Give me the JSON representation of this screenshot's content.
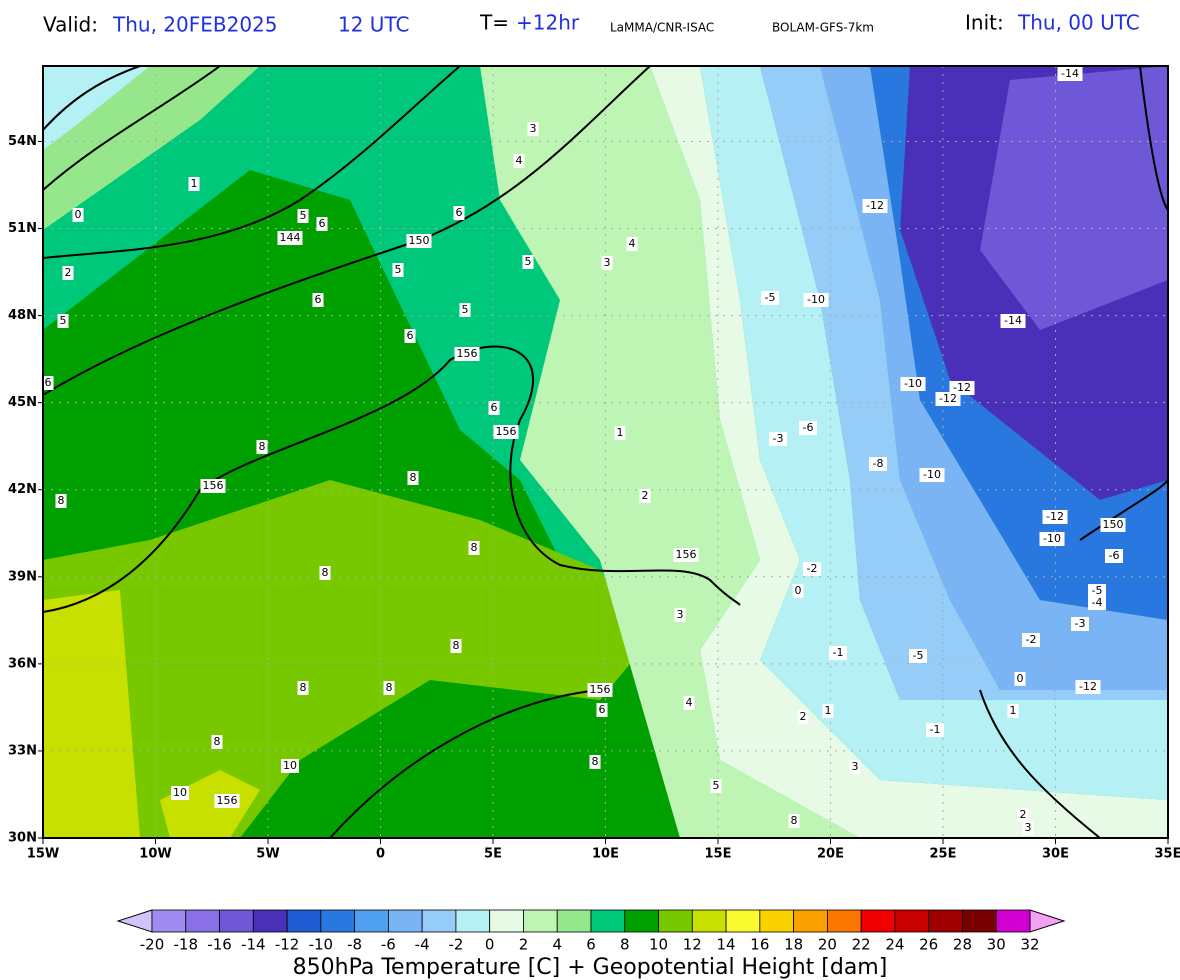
{
  "header": {
    "valid_label": "Valid:",
    "valid_date": "Thu, 20FEB2025",
    "valid_time": "12 UTC",
    "lead_label": "T=",
    "lead_time": "+12hr",
    "institution": "LaMMA/CNR-ISAC",
    "model": "BOLAM-GFS-7km",
    "init_label": "Init:",
    "init_time": "Thu, 00 UTC"
  },
  "map": {
    "xlim": [
      -15,
      35
    ],
    "ylim": [
      30,
      56.6
    ],
    "xticks": [
      {
        "value": -15,
        "label": "15W"
      },
      {
        "value": -10,
        "label": "10W"
      },
      {
        "value": -5,
        "label": "5W"
      },
      0,
      {
        "value": 5,
        "label": "5E"
      },
      {
        "value": 10,
        "label": "10E"
      },
      {
        "value": 15,
        "label": "15E"
      },
      {
        "value": 20,
        "label": "20E"
      },
      {
        "value": 25,
        "label": "25E"
      },
      {
        "value": 30,
        "label": "30E"
      },
      {
        "value": 35,
        "label": "35E"
      }
    ],
    "yticks": [
      {
        "value": 30,
        "label": "30N"
      },
      {
        "value": 33,
        "label": "33N"
      },
      {
        "value": 36,
        "label": "36N"
      },
      {
        "value": 39,
        "label": "39N"
      },
      {
        "value": 42,
        "label": "42N"
      },
      {
        "value": 45,
        "label": "45N"
      },
      {
        "value": 48,
        "label": "48N"
      },
      {
        "value": 51,
        "label": "51N"
      },
      {
        "value": 54,
        "label": "54N"
      }
    ],
    "grid": true,
    "contour_labels": [
      -14,
      -12,
      -14,
      -10,
      -5,
      -10,
      -12,
      -12,
      -8,
      -10,
      -12,
      -10,
      150,
      -6,
      -5,
      -4,
      -3,
      -12,
      0,
      -1,
      -5,
      -1,
      -2,
      -3,
      -6,
      0,
      1,
      2,
      4,
      5,
      6,
      8,
      8,
      156,
      156,
      156,
      156,
      150,
      144,
      156,
      156,
      10,
      10,
      8,
      8,
      8,
      8,
      8,
      8,
      8,
      8,
      8,
      6,
      5,
      6,
      5,
      5,
      6,
      5,
      6,
      0,
      1,
      2,
      3,
      4,
      6,
      5,
      3,
      4,
      6,
      1,
      2,
      3,
      3,
      2,
      3,
      1,
      -2
    ]
  },
  "colorbar": {
    "levels": [
      -20,
      -18,
      -16,
      -14,
      -12,
      -10,
      -8,
      -6,
      -4,
      -2,
      0,
      2,
      4,
      6,
      8,
      10,
      12,
      14,
      16,
      18,
      20,
      22,
      24,
      26,
      28,
      30,
      32
    ],
    "colors": [
      "#a08cf0",
      "#8a70e6",
      "#6e58d8",
      "#4a30b8",
      "#1e5ad0",
      "#2878e0",
      "#50a0f0",
      "#7ab4f4",
      "#96ccf8",
      "#b4f0f4",
      "#e6fae6",
      "#bef4b4",
      "#96e68c",
      "#00c87a",
      "#00a000",
      "#78c800",
      "#c8e000",
      "#fafa30",
      "#fad200",
      "#faa000",
      "#fa7800",
      "#f00000",
      "#c80000",
      "#a00000",
      "#780000",
      "#d000d0"
    ],
    "under_color": "#d0c4f8",
    "over_color": "#f4a0f4",
    "title": "850hPa Temperature [C] + Geopotential Height [dam]"
  }
}
